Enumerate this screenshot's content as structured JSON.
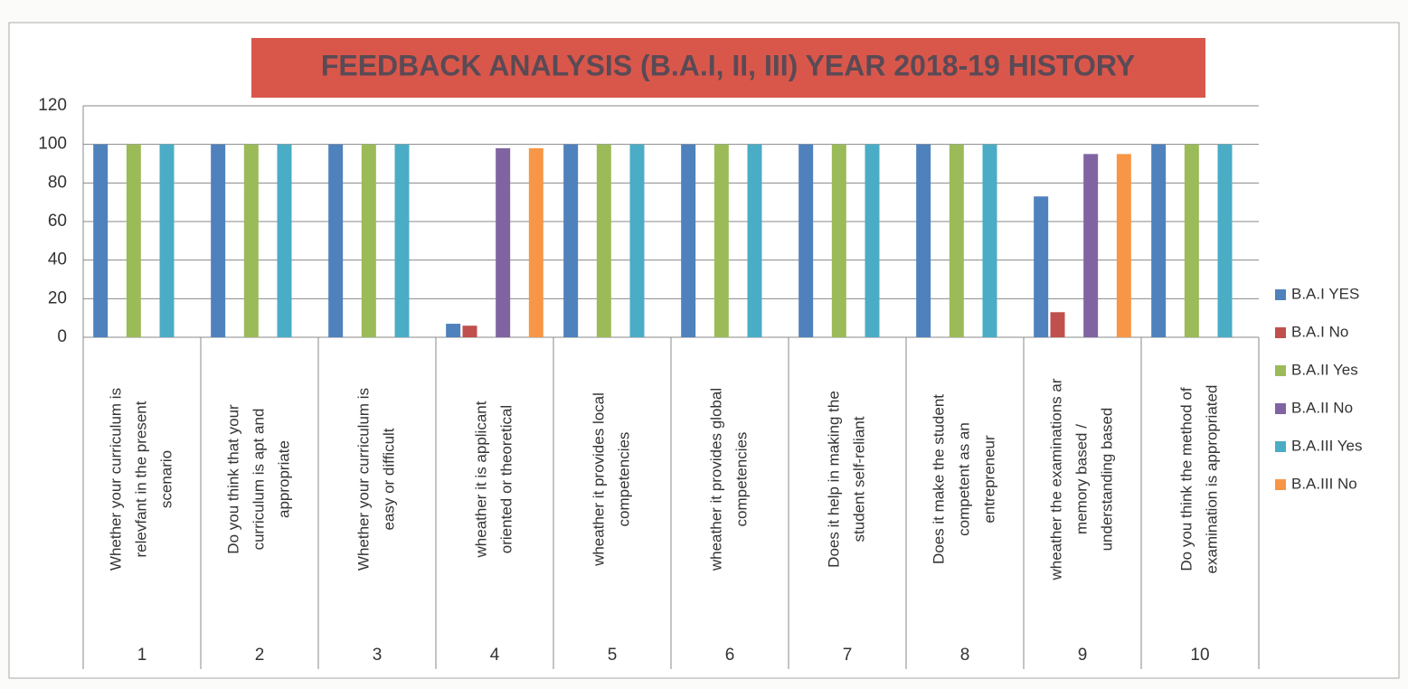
{
  "chart_data": {
    "type": "bar",
    "title": "FEEDBACK ANALYSIS   (B.A.I, II, III) YEAR 2018-19 HISTORY",
    "categories": [
      [
        "Whether your curriculum is",
        "relevfant in the present",
        "scenario"
      ],
      [
        "Do you think that your",
        "curriculum is apt and",
        "appropriate"
      ],
      [
        "Whether your curriculum is",
        "easy or difficult"
      ],
      [
        "wheather it is applicant",
        "oriented or theoretical"
      ],
      [
        "wheather it provides local",
        "competencies"
      ],
      [
        "wheather it provides global",
        "competencies"
      ],
      [
        "Does it help in making the",
        "student self-reliant"
      ],
      [
        "Does it make the student",
        "competent as an",
        "entrepreneur"
      ],
      [
        "wheather the examinations ar",
        "memory based /",
        "understanding based"
      ],
      [
        "Do you think the method of",
        "examination is appropriated"
      ]
    ],
    "category_numbers": [
      1,
      2,
      3,
      4,
      5,
      6,
      7,
      8,
      9,
      10
    ],
    "series": [
      {
        "name": "B.A.I YES",
        "color": "#4f81bd",
        "values": [
          100,
          100,
          100,
          7,
          100,
          100,
          100,
          100,
          73,
          100
        ]
      },
      {
        "name": "B.A.I No",
        "color": "#c0504d",
        "values": [
          0,
          0,
          0,
          6,
          0,
          0,
          0,
          0,
          13,
          0
        ]
      },
      {
        "name": "B.A.II Yes",
        "color": "#9bbb59",
        "values": [
          100,
          100,
          100,
          0,
          100,
          100,
          100,
          100,
          0,
          100
        ]
      },
      {
        "name": "B.A.II No",
        "color": "#8064a2",
        "values": [
          0,
          0,
          0,
          98,
          0,
          0,
          0,
          0,
          95,
          0
        ]
      },
      {
        "name": "B.A.III Yes",
        "color": "#4bacc6",
        "values": [
          100,
          100,
          100,
          0,
          100,
          100,
          100,
          100,
          0,
          100
        ]
      },
      {
        "name": "B.A.III No",
        "color": "#f79646",
        "values": [
          0,
          0,
          0,
          98,
          0,
          0,
          0,
          0,
          95,
          0
        ]
      }
    ],
    "ylim": [
      0,
      120
    ],
    "yticks": [
      0,
      20,
      40,
      60,
      80,
      100,
      120
    ],
    "grid": true,
    "legend": "right"
  }
}
